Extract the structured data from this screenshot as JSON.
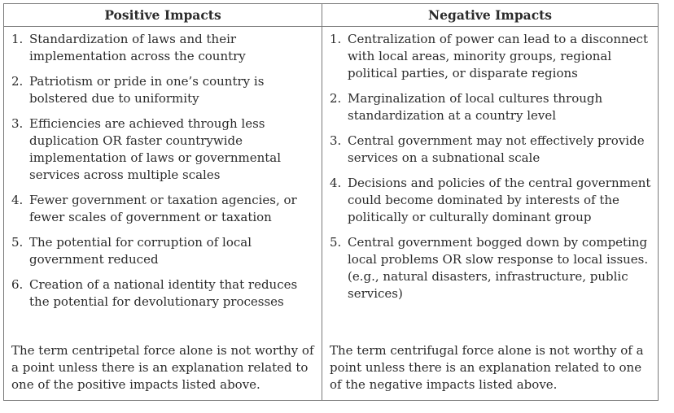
{
  "positive": {
    "heading": "Positive Impacts",
    "items": [
      {
        "num": "1.",
        "text": "Standardization of laws and their implementation across the country"
      },
      {
        "num": "2.",
        "text": "Patriotism or pride in one’s country is bolstered due to uniformity"
      },
      {
        "num": "3.",
        "text": "Efficiencies are achieved through less duplication OR faster countrywide implementation of laws or governmental services across multiple scales"
      },
      {
        "num": "4.",
        "text": "Fewer government or taxation agencies, or fewer scales of government or taxation"
      },
      {
        "num": "5.",
        "text": "The potential for corruption of local government reduced"
      },
      {
        "num": "6.",
        "text": "Creation of a national identity that reduces the potential for devolutionary processes"
      }
    ],
    "note": "The term centripetal force alone is not worthy of a point unless there is an explanation related to one of the positive impacts listed above."
  },
  "negative": {
    "heading": "Negative Impacts",
    "items": [
      {
        "num": "1.",
        "text": "Centralization of power can lead to a disconnect with local areas, minority groups, regional political parties, or disparate regions"
      },
      {
        "num": "2.",
        "text": "Marginalization of local cultures through standardization at a country level"
      },
      {
        "num": "3.",
        "text": "Central government may not effectively provide services on a subnational scale"
      },
      {
        "num": "4.",
        "text": "Decisions and policies of the central government could become dominated by interests of the politically or culturally dominant group"
      },
      {
        "num": "5.",
        "text": "Central government bogged down by competing local problems OR slow response to local issues. (e.g., natural disasters, infrastructure, public services)"
      }
    ],
    "note": "The term centrifugal force alone is not worthy of a point unless there is an explanation related to one of the negative impacts listed above."
  }
}
